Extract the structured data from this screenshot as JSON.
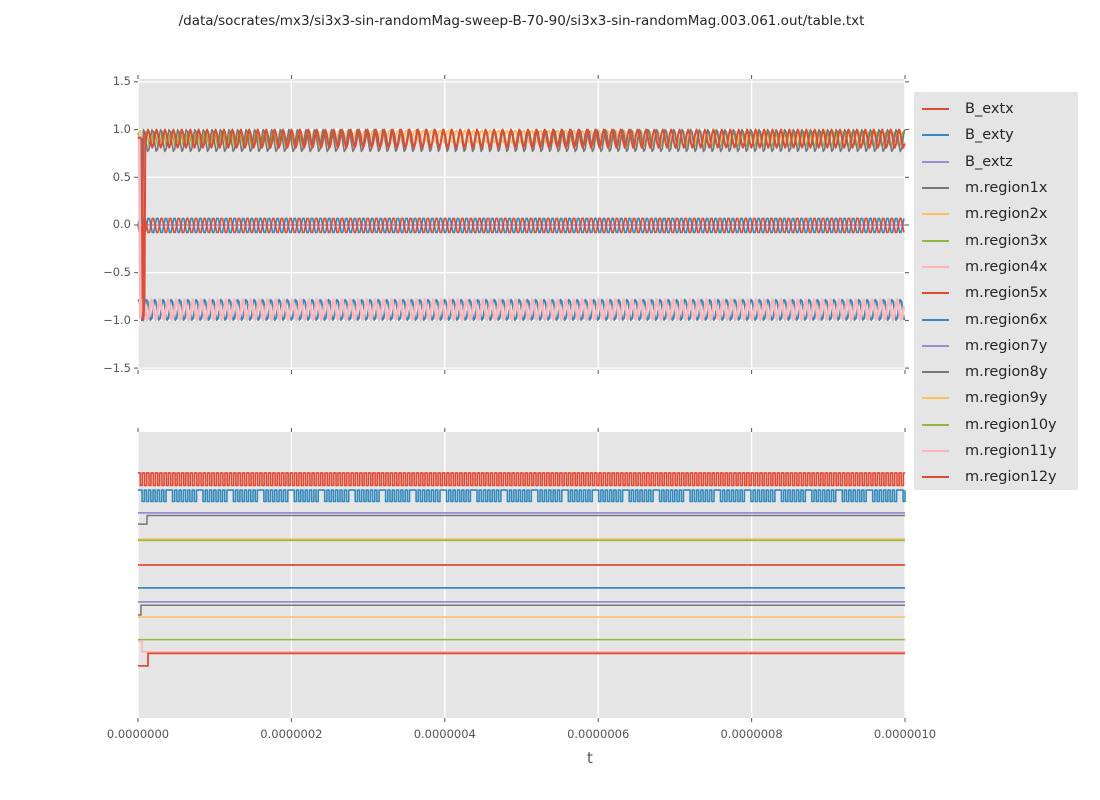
{
  "title": "/data/socrates/mx3/si3x3-sin-randomMag-sweep-B-70-90/si3x3-sin-randomMag.003.061.out/table.txt",
  "xlabel": "t",
  "colors": {
    "figure_background": "#ffffff",
    "axes_background": "#e5e5e5",
    "grid": "#ffffff",
    "tick": "#555555",
    "tick_label": "#555555",
    "title_text": "#262626",
    "palette": {
      "red": "#e24a33",
      "blue": "#348abd",
      "purple": "#988ed5",
      "gray": "#777777",
      "yellow": "#fbc15e",
      "green": "#8eba42",
      "pink": "#ffb5b8"
    }
  },
  "legend": {
    "items": [
      {
        "label": "B_extx",
        "color": "#e24a33"
      },
      {
        "label": "B_exty",
        "color": "#348abd"
      },
      {
        "label": "B_extz",
        "color": "#988ed5"
      },
      {
        "label": "m.region1x",
        "color": "#777777"
      },
      {
        "label": "m.region2x",
        "color": "#fbc15e"
      },
      {
        "label": "m.region3x",
        "color": "#8eba42"
      },
      {
        "label": "m.region4x",
        "color": "#ffb5b8"
      },
      {
        "label": "m.region5x",
        "color": "#e24a33"
      },
      {
        "label": "m.region6x",
        "color": "#348abd"
      },
      {
        "label": "m.region7y",
        "color": "#988ed5"
      },
      {
        "label": "m.region8y",
        "color": "#777777"
      },
      {
        "label": "m.region9y",
        "color": "#fbc15e"
      },
      {
        "label": "m.region10y",
        "color": "#8eba42"
      },
      {
        "label": "m.region11y",
        "color": "#ffb5b8"
      },
      {
        "label": "m.region12y",
        "color": "#e24a33"
      }
    ]
  },
  "chart_data": [
    {
      "id": "top",
      "type": "line",
      "note": "Dense periodic oscillations read from pixels; series described by center/amplitude/period (t units, seconds). Three bands: ~+0.9, ~0.0, ~-0.9. Initial transient near t=0 swings between +1 and -1.",
      "xlim": [
        0,
        1e-06
      ],
      "ylim": [
        -1.52,
        1.53
      ],
      "ymap": "value",
      "grid_x": true,
      "grid_y": true,
      "yticks_both_sides": true,
      "ylabels_left": true,
      "xlabels_bottom": false,
      "yticks": [
        {
          "v": 1.5,
          "label": "1.5"
        },
        {
          "v": 1.0,
          "label": "1.0"
        },
        {
          "v": 0.5,
          "label": "0.5"
        },
        {
          "v": 0.0,
          "label": "0.0"
        },
        {
          "v": -0.5,
          "label": "−0.5"
        },
        {
          "v": -1.0,
          "label": "−1.0"
        },
        {
          "v": -1.5,
          "label": "−1.5"
        }
      ],
      "xticks": [
        {
          "v": 0,
          "label": "0.0000000"
        },
        {
          "v": 2e-07,
          "label": "0.0000002"
        },
        {
          "v": 4e-07,
          "label": "0.0000004"
        },
        {
          "v": 6e-07,
          "label": "0.0000006"
        },
        {
          "v": 8e-07,
          "label": "0.0000008"
        },
        {
          "v": 1e-06,
          "label": "0.0000010"
        }
      ],
      "series": [
        {
          "name": "m.region2x",
          "color": "#fbc15e",
          "lw": 1.5,
          "kind": "sine",
          "center": 0.93,
          "amp": 0.07,
          "period": 1.09e-08,
          "phase": 0.8,
          "prefix": [
            [
              0,
              0.96
            ],
            [
              3e-09,
              0.99
            ],
            [
              5.5e-09,
              0.9
            ]
          ]
        },
        {
          "name": "m.region3x",
          "color": "#8eba42",
          "lw": 1.5,
          "kind": "sine",
          "center": 0.9,
          "amp": 0.08,
          "period": 1.11e-08,
          "phase": 2.1
        },
        {
          "name": "m.region1x",
          "color": "#777777",
          "lw": 1.6,
          "kind": "sine",
          "center": 0.885,
          "amp": 0.12,
          "period": 1.115e-08,
          "phase": 3.6,
          "prefix": [
            [
              0,
              0.9
            ],
            [
              3.5e-09,
              0.92
            ],
            [
              5e-09,
              -1.0
            ],
            [
              7e-09,
              0.86
            ]
          ]
        },
        {
          "name": "B_extz",
          "color": "#988ed5",
          "lw": 1.6,
          "kind": "flat",
          "value": 0.0
        },
        {
          "name": "B_exty",
          "color": "#348abd",
          "lw": 1.6,
          "kind": "sine",
          "center": -0.005,
          "amp": 0.085,
          "period": 1.12e-08,
          "phase": 0.0
        },
        {
          "name": "m.region5x",
          "color": "#e24a33",
          "lw": 1.6,
          "kind": "sine",
          "center": -0.005,
          "amp": 0.085,
          "period": 1.12e-08,
          "phase": 3.14
        },
        {
          "name": "m.region6x",
          "color": "#348abd",
          "lw": 1.8,
          "kind": "sine",
          "center": -0.89,
          "amp": 0.115,
          "period": 1.08e-08,
          "phase": 1.2
        },
        {
          "name": "m.region4x",
          "color": "#ffb5b8",
          "lw": 2.6,
          "kind": "sine",
          "center": -0.89,
          "amp": 0.11,
          "period": 1.08e-08,
          "phase": 3.8,
          "prefix": [
            [
              0,
              0.9
            ],
            [
              1.5e-09,
              0.93
            ],
            [
              3e-09,
              -0.8
            ]
          ]
        },
        {
          "name": "B_extx",
          "color": "#e24a33",
          "lw": 2.0,
          "kind": "sine",
          "center": 0.905,
          "amp": 0.095,
          "period": 1.1e-08,
          "phase": 0.3,
          "prefix": [
            [
              0,
              0.92
            ],
            [
              5.5e-09,
              0.9
            ],
            [
              7e-09,
              -1.0
            ],
            [
              8.5e-09,
              -0.75
            ],
            [
              9.5e-09,
              0.95
            ]
          ]
        }
      ]
    },
    {
      "id": "bottom",
      "type": "line",
      "note": "No y tick labels shown; levels given as fraction of plot height from top. Two square waves on top, flat lines below; small step transients near t=0.",
      "xlim": [
        0,
        1e-06
      ],
      "ylim": [
        0,
        1
      ],
      "ymap": "fraction",
      "grid_x": true,
      "grid_y": false,
      "yticks_both_sides": false,
      "ylabels_left": false,
      "xlabels_bottom": true,
      "yticks": [],
      "xticks": [
        {
          "v": 0,
          "label": "0.0000000"
        },
        {
          "v": 2e-07,
          "label": "0.0000002"
        },
        {
          "v": 4e-07,
          "label": "0.0000004"
        },
        {
          "v": 6e-07,
          "label": "0.0000006"
        },
        {
          "v": 8e-07,
          "label": "0.0000008"
        },
        {
          "v": 1e-06,
          "label": "0.0000010"
        }
      ],
      "series": [
        {
          "name": "B_extx",
          "color": "#e24a33",
          "lw": 1.6,
          "kind": "square",
          "top": 0.143,
          "bottom": 0.187,
          "period": 5.67e-09,
          "duty": 0.52,
          "phase": 0
        },
        {
          "name": "B_exty",
          "color": "#348abd",
          "lw": 1.6,
          "kind": "square",
          "top": 0.203,
          "bottom": 0.243,
          "period": 5.67e-09,
          "duty": 0.5,
          "phase": 2.5e-09,
          "long_every": 7
        },
        {
          "name": "B_extz",
          "color": "#988ed5",
          "lw": 1.8,
          "kind": "flat",
          "value": 0.283
        },
        {
          "name": "m.region1x",
          "color": "#777777",
          "lw": 1.5,
          "kind": "steps",
          "points": [
            [
              0,
              0.322
            ],
            [
              1.17e-08,
              0.322
            ],
            [
              1.17e-08,
              0.292
            ],
            [
              1e-06,
              0.292
            ]
          ]
        },
        {
          "name": "m.region4x",
          "color": "#ffb5b8",
          "lw": 1.5,
          "kind": "flat",
          "value": 0.378
        },
        {
          "name": "m.region2x",
          "color": "#fbc15e",
          "lw": 1.5,
          "kind": "flat",
          "value": 0.374
        },
        {
          "name": "m.region3x",
          "color": "#8eba42",
          "lw": 1.5,
          "kind": "flat",
          "value": 0.379
        },
        {
          "name": "m.region5x",
          "color": "#e24a33",
          "lw": 1.8,
          "kind": "flat",
          "value": 0.465
        },
        {
          "name": "m.region6x",
          "color": "#348abd",
          "lw": 1.8,
          "kind": "flat",
          "value": 0.545
        },
        {
          "name": "m.region7y",
          "color": "#988ed5",
          "lw": 1.8,
          "kind": "flat",
          "value": 0.594
        },
        {
          "name": "m.region8y",
          "color": "#777777",
          "lw": 1.5,
          "kind": "steps",
          "points": [
            [
              0,
              0.64
            ],
            [
              3.9e-09,
              0.64
            ],
            [
              3.9e-09,
              0.606
            ],
            [
              1e-06,
              0.606
            ]
          ]
        },
        {
          "name": "m.region9y",
          "color": "#fbc15e",
          "lw": 1.5,
          "kind": "flat",
          "value": 0.647
        },
        {
          "name": "m.region10y",
          "color": "#8eba42",
          "lw": 1.5,
          "kind": "flat",
          "value": 0.726
        },
        {
          "name": "m.region11y",
          "color": "#ffb5b8",
          "lw": 1.8,
          "kind": "steps",
          "points": [
            [
              0,
              0.731
            ],
            [
              5.2e-09,
              0.731
            ],
            [
              5.2e-09,
              0.769
            ],
            [
              1e-06,
              0.769
            ]
          ]
        },
        {
          "name": "m.region12y",
          "color": "#e24a33",
          "lw": 1.8,
          "kind": "steps",
          "points": [
            [
              0,
              0.818
            ],
            [
              1.3e-08,
              0.818
            ],
            [
              1.3e-08,
              0.774
            ],
            [
              1e-06,
              0.774
            ]
          ]
        }
      ]
    }
  ]
}
